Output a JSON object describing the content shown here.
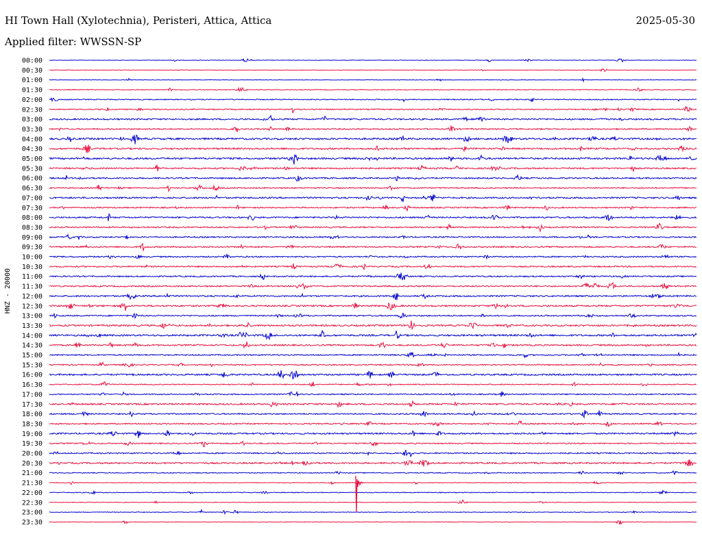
{
  "header": {
    "title": "HI Town Hall (Xylotechnia), Peristeri, Attica, Attica",
    "date": "2025-05-30",
    "filter": "Applied filter: WWSSN-SP"
  },
  "colors": {
    "trace_a": "#0000cc",
    "trace_b": "#e8103f"
  },
  "chart_data": {
    "type": "line",
    "title": "HI Town Hall (Xylotechnia), Peristeri, Attica, Attica",
    "ylabel": "HNZ - 20000",
    "rows": [
      "00:00",
      "00:30",
      "01:00",
      "01:30",
      "02:00",
      "02:30",
      "03:00",
      "03:30",
      "04:00",
      "04:30",
      "05:00",
      "05:30",
      "06:00",
      "06:30",
      "07:00",
      "07:30",
      "08:00",
      "08:30",
      "09:00",
      "09:30",
      "10:00",
      "10:30",
      "11:00",
      "11:30",
      "12:00",
      "12:30",
      "13:00",
      "13:30",
      "14:00",
      "14:30",
      "15:00",
      "15:30",
      "16:00",
      "16:30",
      "17:00",
      "17:30",
      "18:00",
      "18:30",
      "19:00",
      "19:30",
      "20:00",
      "20:30",
      "21:00",
      "21:30",
      "22:00",
      "22:30",
      "23:00",
      "23:30"
    ],
    "row_minutes": 30,
    "series_colors": [
      "#0000cc",
      "#e8103f"
    ],
    "amplitude": [
      0.8,
      0.7,
      0.7,
      1.2,
      1.5,
      1.7,
      2.3,
      2.0,
      2.8,
      2.6,
      2.7,
      2.4,
      2.2,
      1.9,
      2.4,
      2.0,
      2.3,
      2.1,
      2.0,
      2.2,
      2.0,
      2.1,
      2.0,
      2.2,
      2.3,
      2.5,
      2.0,
      2.6,
      2.7,
      2.3,
      2.0,
      1.8,
      2.5,
      1.6,
      1.8,
      2.5,
      2.1,
      2.0,
      2.4,
      1.8,
      2.0,
      2.4,
      1.4,
      1.0,
      1.2,
      0.9,
      1.0,
      0.8
    ],
    "events": [
      {
        "row": "21:30",
        "minute": 14.2,
        "direction": "down",
        "rows_spanned": 3
      }
    ]
  }
}
